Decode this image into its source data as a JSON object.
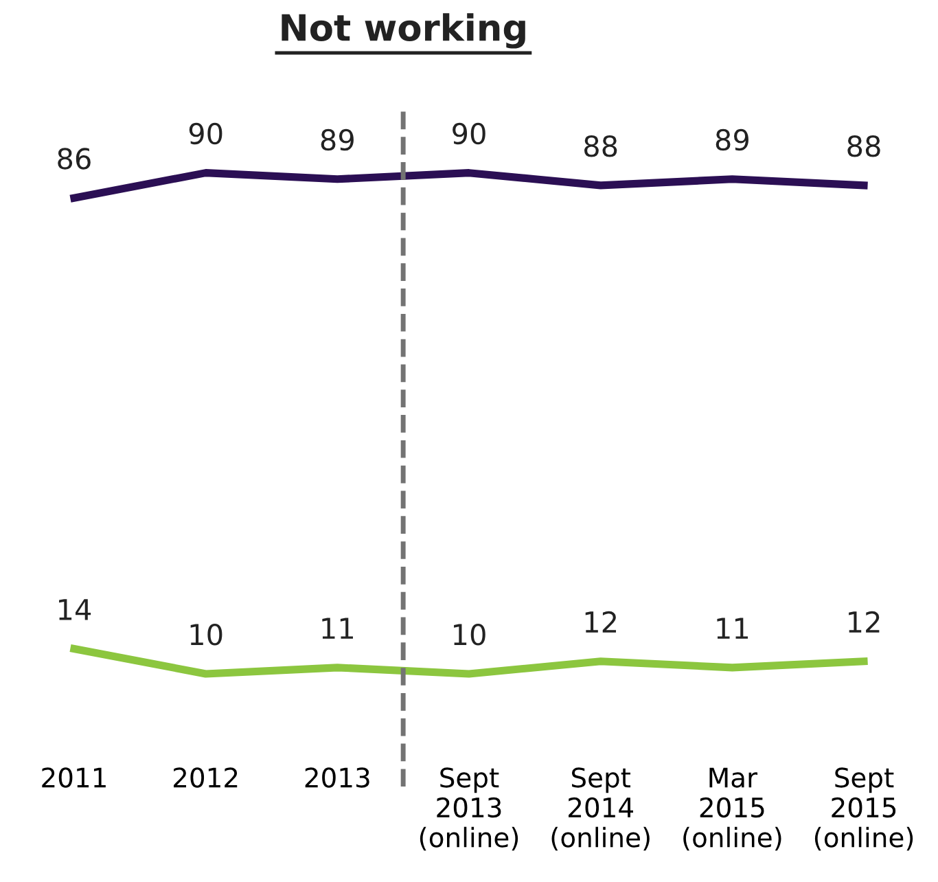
{
  "chart_data": {
    "type": "line",
    "title": "Not working",
    "categories": [
      "2011",
      "2012",
      "2013",
      "Sept\n2013\n(online)",
      "Sept\n2014\n(online)",
      "Mar\n2015\n(online)",
      "Sept\n2015\n(online)"
    ],
    "series": [
      {
        "color": "#2b0f54",
        "values": [
          86,
          90,
          89,
          90,
          88,
          89,
          88
        ]
      },
      {
        "color": "#8cc63f",
        "values": [
          14,
          10,
          11,
          10,
          12,
          11,
          12
        ]
      }
    ],
    "data_labels": true,
    "grid": false,
    "legend": false,
    "marker": "none",
    "line_style": "solid"
  }
}
